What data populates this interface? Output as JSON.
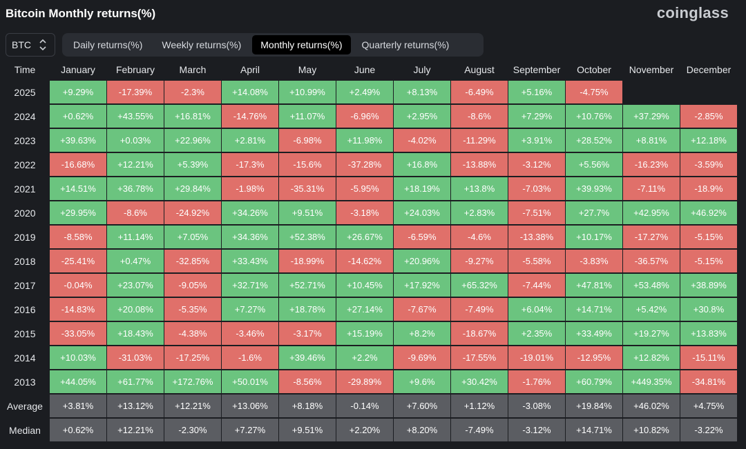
{
  "header": {
    "title": "Bitcoin Monthly returns(%)",
    "brand": "coinglass"
  },
  "coin_select": {
    "value": "BTC"
  },
  "tabs": [
    {
      "label": "Daily returns(%)",
      "active": false
    },
    {
      "label": "Weekly returns(%)",
      "active": false
    },
    {
      "label": "Monthly returns(%)",
      "active": true
    },
    {
      "label": "Quarterly returns(%)",
      "active": false
    }
  ],
  "colors": {
    "positive": "#6bc47f",
    "negative": "#e0706a",
    "summary": "#5b5d62"
  },
  "table": {
    "columns": [
      "Time",
      "January",
      "February",
      "March",
      "April",
      "May",
      "June",
      "July",
      "August",
      "September",
      "October",
      "November",
      "December"
    ],
    "rows": [
      {
        "label": "2025",
        "values": [
          "+9.29%",
          "-17.39%",
          "-2.3%",
          "+14.08%",
          "+10.99%",
          "+2.49%",
          "+8.13%",
          "-6.49%",
          "+5.16%",
          "-4.75%",
          "",
          ""
        ]
      },
      {
        "label": "2024",
        "values": [
          "+0.62%",
          "+43.55%",
          "+16.81%",
          "-14.76%",
          "+11.07%",
          "-6.96%",
          "+2.95%",
          "-8.6%",
          "+7.29%",
          "+10.76%",
          "+37.29%",
          "-2.85%"
        ]
      },
      {
        "label": "2023",
        "values": [
          "+39.63%",
          "+0.03%",
          "+22.96%",
          "+2.81%",
          "-6.98%",
          "+11.98%",
          "-4.02%",
          "-11.29%",
          "+3.91%",
          "+28.52%",
          "+8.81%",
          "+12.18%"
        ]
      },
      {
        "label": "2022",
        "values": [
          "-16.68%",
          "+12.21%",
          "+5.39%",
          "-17.3%",
          "-15.6%",
          "-37.28%",
          "+16.8%",
          "-13.88%",
          "-3.12%",
          "+5.56%",
          "-16.23%",
          "-3.59%"
        ]
      },
      {
        "label": "2021",
        "values": [
          "+14.51%",
          "+36.78%",
          "+29.84%",
          "-1.98%",
          "-35.31%",
          "-5.95%",
          "+18.19%",
          "+13.8%",
          "-7.03%",
          "+39.93%",
          "-7.11%",
          "-18.9%"
        ]
      },
      {
        "label": "2020",
        "values": [
          "+29.95%",
          "-8.6%",
          "-24.92%",
          "+34.26%",
          "+9.51%",
          "-3.18%",
          "+24.03%",
          "+2.83%",
          "-7.51%",
          "+27.7%",
          "+42.95%",
          "+46.92%"
        ]
      },
      {
        "label": "2019",
        "values": [
          "-8.58%",
          "+11.14%",
          "+7.05%",
          "+34.36%",
          "+52.38%",
          "+26.67%",
          "-6.59%",
          "-4.6%",
          "-13.38%",
          "+10.17%",
          "-17.27%",
          "-5.15%"
        ]
      },
      {
        "label": "2018",
        "values": [
          "-25.41%",
          "+0.47%",
          "-32.85%",
          "+33.43%",
          "-18.99%",
          "-14.62%",
          "+20.96%",
          "-9.27%",
          "-5.58%",
          "-3.83%",
          "-36.57%",
          "-5.15%"
        ]
      },
      {
        "label": "2017",
        "values": [
          "-0.04%",
          "+23.07%",
          "-9.05%",
          "+32.71%",
          "+52.71%",
          "+10.45%",
          "+17.92%",
          "+65.32%",
          "-7.44%",
          "+47.81%",
          "+53.48%",
          "+38.89%"
        ]
      },
      {
        "label": "2016",
        "values": [
          "-14.83%",
          "+20.08%",
          "-5.35%",
          "+7.27%",
          "+18.78%",
          "+27.14%",
          "-7.67%",
          "-7.49%",
          "+6.04%",
          "+14.71%",
          "+5.42%",
          "+30.8%"
        ]
      },
      {
        "label": "2015",
        "values": [
          "-33.05%",
          "+18.43%",
          "-4.38%",
          "-3.46%",
          "-3.17%",
          "+15.19%",
          "+8.2%",
          "-18.67%",
          "+2.35%",
          "+33.49%",
          "+19.27%",
          "+13.83%"
        ]
      },
      {
        "label": "2014",
        "values": [
          "+10.03%",
          "-31.03%",
          "-17.25%",
          "-1.6%",
          "+39.46%",
          "+2.2%",
          "-9.69%",
          "-17.55%",
          "-19.01%",
          "-12.95%",
          "+12.82%",
          "-15.11%"
        ]
      },
      {
        "label": "2013",
        "values": [
          "+44.05%",
          "+61.77%",
          "+172.76%",
          "+50.01%",
          "-8.56%",
          "-29.89%",
          "+9.6%",
          "+30.42%",
          "-1.76%",
          "+60.79%",
          "+449.35%",
          "-34.81%"
        ]
      }
    ],
    "summary_rows": [
      {
        "label": "Average",
        "values": [
          "+3.81%",
          "+13.12%",
          "+12.21%",
          "+13.06%",
          "+8.18%",
          "-0.14%",
          "+7.60%",
          "+1.12%",
          "-3.08%",
          "+19.84%",
          "+46.02%",
          "+4.75%"
        ]
      },
      {
        "label": "Median",
        "values": [
          "+0.62%",
          "+12.21%",
          "-2.30%",
          "+7.27%",
          "+9.51%",
          "+2.20%",
          "+8.20%",
          "-7.49%",
          "-3.12%",
          "+14.71%",
          "+10.82%",
          "-3.22%"
        ]
      }
    ]
  }
}
